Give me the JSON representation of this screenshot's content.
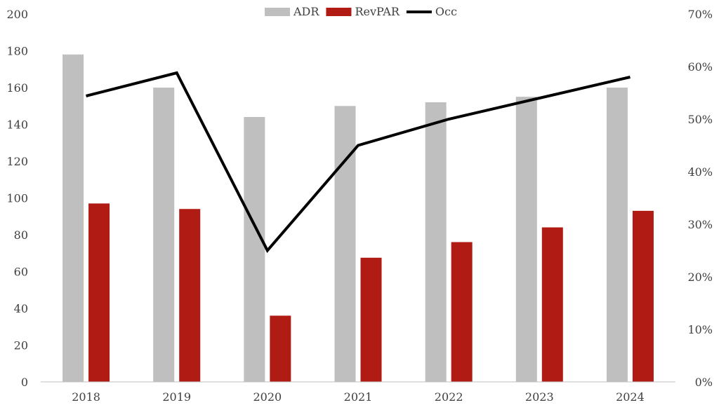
{
  "chart_data": {
    "type": "bar",
    "categories": [
      "2018",
      "2019",
      "2020",
      "2021",
      "2022",
      "2023",
      "2024"
    ],
    "series": [
      {
        "name": "ADR",
        "type": "bar",
        "axis": "left",
        "color": "#bfbfbf",
        "values": [
          178,
          160,
          144,
          150,
          152,
          155,
          160
        ]
      },
      {
        "name": "RevPAR",
        "type": "bar",
        "axis": "left",
        "color": "#b01c14",
        "values": [
          97,
          94,
          36,
          67.5,
          76,
          84,
          93
        ]
      },
      {
        "name": "Occ",
        "type": "line",
        "axis": "right",
        "color": "#000000",
        "values": [
          0.544,
          0.588,
          0.25,
          0.45,
          0.5,
          0.54,
          0.58
        ]
      }
    ],
    "title": "",
    "xlabel": "",
    "ylabel": "",
    "ylim": [
      0,
      200
    ],
    "yticks": [
      "0",
      "20",
      "40",
      "60",
      "80",
      "100",
      "120",
      "140",
      "160",
      "180",
      "200"
    ],
    "y2lim": [
      0,
      0.7
    ],
    "y2ticks": [
      "0%",
      "10%",
      "20%",
      "30%",
      "40%",
      "50%",
      "60%",
      "70%"
    ],
    "legend_position": "top",
    "grid": false
  }
}
